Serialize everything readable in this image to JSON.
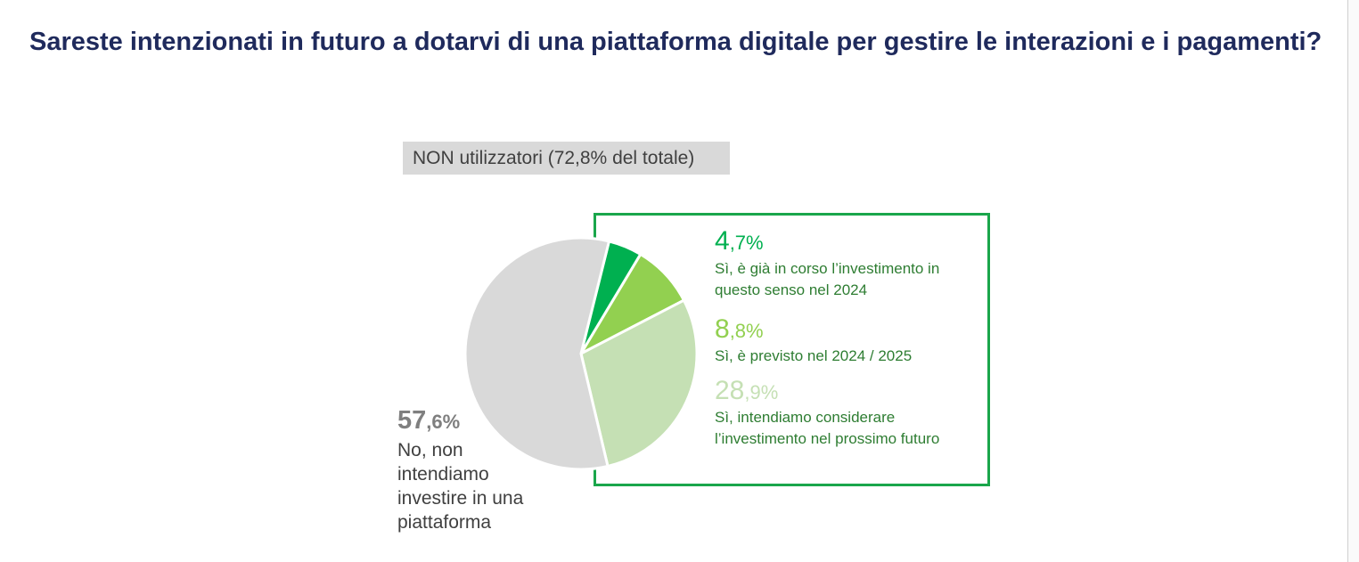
{
  "title": "Sareste intenzionati in futuro a dotarvi di una piattaforma digitale per gestire le interazioni e i pagamenti?",
  "subtitle": "NON utilizzatori (72,8% del totale)",
  "chart_data": {
    "type": "pie",
    "title": "Sareste intenzionati in futuro a dotarvi di una piattaforma digitale per gestire le interazioni e i pagamenti?",
    "subtitle": "NON utilizzatori (72,8% del totale)",
    "slices": [
      {
        "pct_int": "4",
        "pct_dec": ",7%",
        "value": 4.7,
        "color": "#00b050",
        "label": "Sì, è già in corso l’investimento in questo senso nel 2024"
      },
      {
        "pct_int": "8",
        "pct_dec": ",8%",
        "value": 8.8,
        "color": "#92d050",
        "label": "Sì, è previsto nel 2024 / 2025"
      },
      {
        "pct_int": "28",
        "pct_dec": ",9%",
        "value": 28.9,
        "color": "#c5e0b4",
        "label": "Sì, intendiamo considerare l’investimento nel prossimo futuro"
      },
      {
        "pct_int": "57",
        "pct_dec": ",6%",
        "value": 57.6,
        "color": "#d9d9d9",
        "label": "No, non intendiamo investire in una piattaforma"
      }
    ]
  }
}
